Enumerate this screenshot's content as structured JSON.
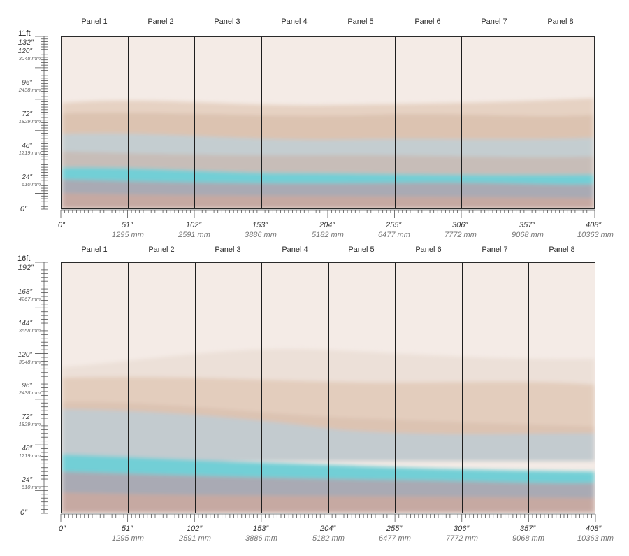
{
  "panels": [
    "Panel 1",
    "Panel 2",
    "Panel 3",
    "Panel 4",
    "Panel 5",
    "Panel 6",
    "Panel 7",
    "Panel 8"
  ],
  "x_axis": {
    "zero": "0″",
    "ticks": [
      {
        "inch": "51″",
        "mm": "1295 mm"
      },
      {
        "inch": "102″",
        "mm": "2591 mm"
      },
      {
        "inch": "153″",
        "mm": "3886 mm"
      },
      {
        "inch": "204″",
        "mm": "5182 mm"
      },
      {
        "inch": "255″",
        "mm": "6477 mm"
      },
      {
        "inch": "306″",
        "mm": "7772 mm"
      },
      {
        "inch": "357″",
        "mm": "9068 mm"
      },
      {
        "inch": "408″",
        "mm": "10363 mm"
      }
    ]
  },
  "diagrams": [
    {
      "height_ft": "11ft",
      "height_in": "132″",
      "zero": "0″",
      "y_ticks": [
        {
          "inch": "120″",
          "mm": "3048 mm"
        },
        {
          "inch": "96″",
          "mm": "2438 mm"
        },
        {
          "inch": "72″",
          "mm": "1829 mm"
        },
        {
          "inch": "48″",
          "mm": "1219 mm"
        },
        {
          "inch": "24″",
          "mm": "610 mm"
        }
      ]
    },
    {
      "height_ft": "16ft",
      "height_in": "192″",
      "zero": "0″",
      "y_ticks": [
        {
          "inch": "168″",
          "mm": "4267 mm"
        },
        {
          "inch": "144″",
          "mm": "3658 mm"
        },
        {
          "inch": "120″",
          "mm": "3048 mm"
        },
        {
          "inch": "96″",
          "mm": "2438 mm"
        },
        {
          "inch": "72″",
          "mm": "1829 mm"
        },
        {
          "inch": "48″",
          "mm": "1219 mm"
        },
        {
          "inch": "24″",
          "mm": "610 mm"
        }
      ]
    }
  ],
  "colors": {
    "sky": "#f3e9e3",
    "sand": "#e3cdbd",
    "blue_grey": "#b9c7cc",
    "turquoise": "#6fd0d8",
    "mauve": "#b8a3a0",
    "seam": "#1e1e1e"
  }
}
